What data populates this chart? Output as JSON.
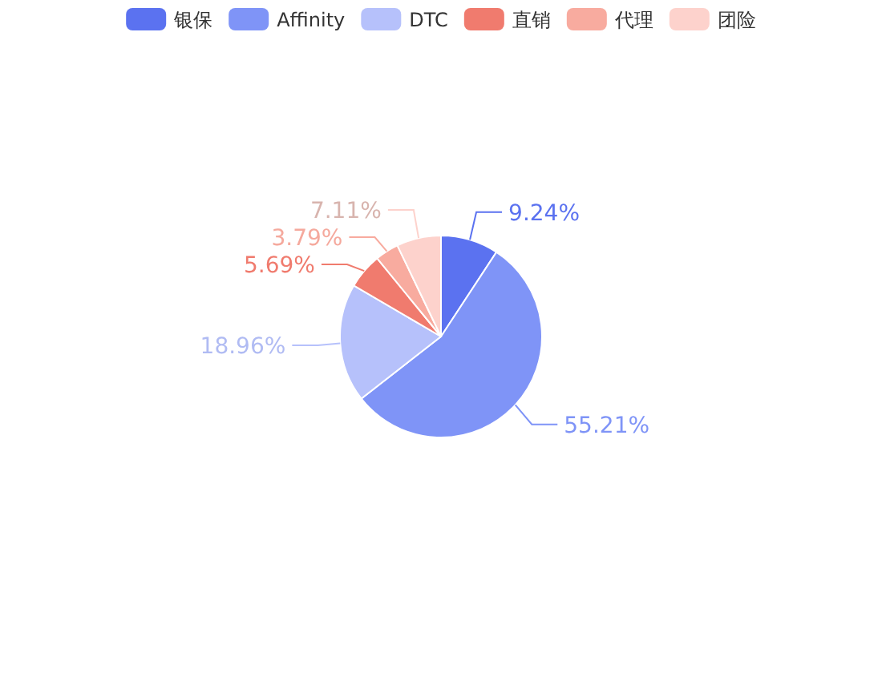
{
  "chart_data": {
    "type": "pie",
    "categories": [
      "银保",
      "Affinity",
      "DTC",
      "直销",
      "代理",
      "团险"
    ],
    "values": [
      9.24,
      55.21,
      18.96,
      5.69,
      3.79,
      7.11
    ],
    "colors": [
      "#5b72f0",
      "#7f94f7",
      "#b6c1fb",
      "#f07b6e",
      "#f8ab9f",
      "#fdd2cc"
    ],
    "value_labels": [
      "9.24%",
      "55.21%",
      "18.96%",
      "5.69%",
      "3.79%",
      "7.11%"
    ],
    "legend": "top"
  }
}
